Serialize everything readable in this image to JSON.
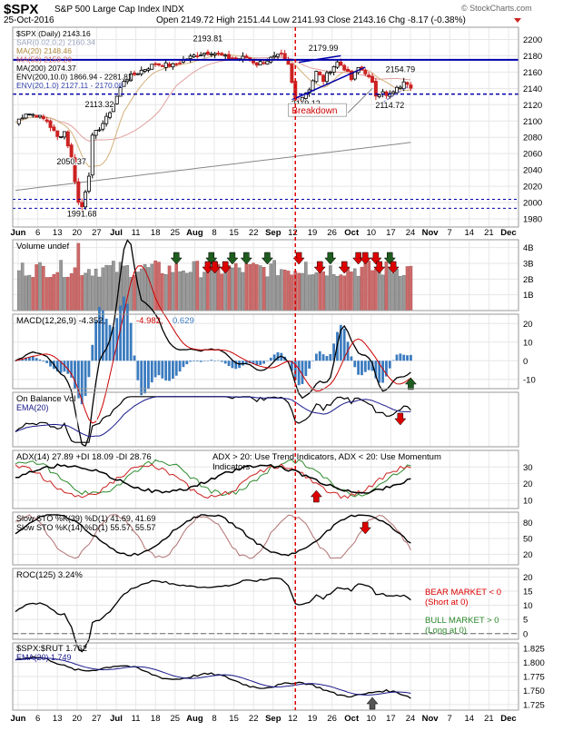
{
  "header": {
    "symbol": "$SPX",
    "description": "S&P 500 Large Cap Index INDX",
    "date": "25-Oct-2016",
    "brand": "© StockCharts.com",
    "quote": "Open 2149.72  High 2151.44  Low 2141.93  Close 2143.16  Chg -8.17 (-0.38%)"
  },
  "colors": {
    "up_candle": "#ffffff",
    "down_candle": "#cc2222",
    "resistance_line": "#0000aa",
    "sma200": "#888888",
    "ema20": "#1a1a8c",
    "macd_signal": "#cc0000",
    "buy_arrow": "#1f5c1f",
    "sell_arrow": "#dd0000",
    "breakdown_label": "#cc0000",
    "pdi": "#2e8b2e",
    "mdi": "#cc2222",
    "histogram": "#3a7bbf"
  },
  "chart_data": [
    {
      "id": "price",
      "type": "candlestick",
      "legend": [
        "$SPX (Daily) 2143.16",
        "SAR(0.02,0.2) 2160.34",
        "MA(20) 2148.46",
        "MA(50) 2159.20",
        "MA(200) 2074.37",
        "ENV(200,10.0) 1866.94 - 2281.81",
        "ENV(20,1.0) 2127.11 - 2170.08"
      ],
      "ylim": [
        1970,
        2215
      ],
      "yticks": [
        1980,
        2000,
        2020,
        2040,
        2060,
        2080,
        2100,
        2120,
        2140,
        2160,
        2180,
        2200
      ],
      "xticks": [
        "Jun",
        "6",
        "13",
        "20",
        "27",
        "Jul",
        "11",
        "18",
        "25",
        "Aug",
        "8",
        "15",
        "22",
        "Sep",
        "12",
        "19",
        "26",
        "Oct",
        "10",
        "17",
        "24",
        "Nov",
        "7",
        "14",
        "21",
        "Dec"
      ],
      "horizontal_lines": [
        2175,
        2133,
        2004,
        1993
      ],
      "annotations": [
        "2193.81",
        "2179.99",
        "2154.79",
        "2113.32",
        "2050.37",
        "1991.68",
        "2119.12",
        "2114.72",
        "Breakdown"
      ]
    },
    {
      "id": "volume",
      "type": "bar",
      "label": "Volume undef",
      "yticks": [
        "1B",
        "2B",
        "3B",
        "4B"
      ],
      "ylim": [
        0,
        4.5
      ]
    },
    {
      "id": "macd",
      "type": "line",
      "label": "MACD(12,26,9)",
      "values_text": [
        "-4.352",
        "-4.982",
        "0.629"
      ],
      "yticks": [
        -10,
        0,
        10,
        20
      ],
      "ylim": [
        -15,
        25
      ]
    },
    {
      "id": "obv",
      "type": "line",
      "label": "On Balance Vol",
      "series": [
        {
          "name": "EMA(20)"
        }
      ]
    },
    {
      "id": "adx",
      "type": "line",
      "label": "ADX(14) 27.89 +DI 18.09 -DI 28.76",
      "note": "ADX > 20: Use Trend Indicators, ADX < 20: Use Momentum Indicators",
      "yticks": [
        10,
        20,
        30
      ],
      "ylim": [
        5,
        40
      ]
    },
    {
      "id": "sto_long",
      "type": "line",
      "label": "Slow STO %K(39) %D(1) 41.69, 41.69",
      "yticks": [
        20,
        50,
        80
      ]
    },
    {
      "id": "sto_short",
      "type": "line",
      "label": "Slow STO %K(14) %D(1) 55.57, 55.57",
      "yticks": [
        20,
        50,
        80
      ]
    },
    {
      "id": "roc",
      "type": "line",
      "label": "ROC(125) 3.24%",
      "yticks": [
        0,
        5,
        10,
        15,
        20
      ],
      "ylim": [
        -2,
        23
      ],
      "notes": [
        "BEAR MARKET < 0",
        "(Short at 0)",
        "BULL MARKET > 0",
        "(Long at 0)"
      ]
    },
    {
      "id": "ratio",
      "type": "line",
      "label": "$SPX:$RUT 1.762",
      "series": [
        {
          "name": "EMA(20) 1.749"
        }
      ],
      "yticks": [
        1.725,
        1.75,
        1.775,
        1.8,
        1.825
      ],
      "ylim": [
        1.715,
        1.835
      ]
    }
  ]
}
